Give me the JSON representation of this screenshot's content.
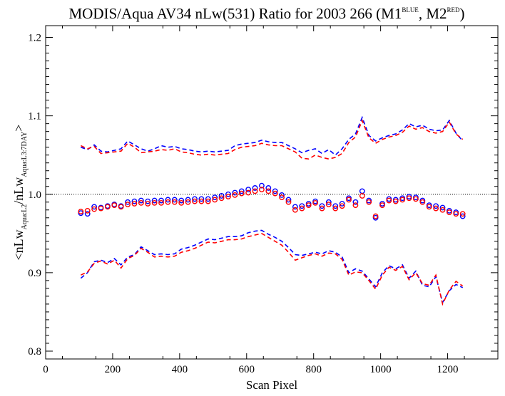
{
  "chart_data": {
    "type": "line",
    "title_main": "MODIS/Aqua AV34 nLw(531) Ratio for 2003 266 (M1",
    "title_sup1": "BLUE",
    "title_mid": ", M2",
    "title_sup2": "RED",
    "title_end": ")",
    "xlabel": "Scan Pixel",
    "ylabel": {
      "pre": "<nLw",
      "sub1": "Aqua:L2",
      "mid": "/nLw",
      "sub2": "Aqua:L3:7DAY",
      "post": ">"
    },
    "xlim": [
      0,
      1350
    ],
    "ylim": [
      0.79,
      1.215
    ],
    "xticks": [
      0,
      200,
      400,
      600,
      800,
      1000,
      1200
    ],
    "xtick_labels": [
      "0",
      "200",
      "400",
      "600",
      "800",
      "1000",
      "1200"
    ],
    "yticks": [
      0.8,
      0.9,
      1.0,
      1.1,
      1.2
    ],
    "ytick_labels": [
      "0.8",
      "0.9",
      "1.0",
      "1.1",
      "1.2"
    ],
    "reference_line": 1.0,
    "x": [
      105,
      125,
      145,
      165,
      185,
      205,
      225,
      245,
      265,
      285,
      305,
      325,
      345,
      365,
      385,
      405,
      425,
      445,
      465,
      485,
      505,
      525,
      545,
      565,
      585,
      605,
      625,
      645,
      665,
      685,
      705,
      725,
      745,
      765,
      785,
      805,
      825,
      845,
      865,
      885,
      905,
      925,
      945,
      965,
      985,
      1005,
      1025,
      1045,
      1065,
      1085,
      1105,
      1125,
      1145,
      1165,
      1185,
      1205,
      1225,
      1245
    ],
    "colors": {
      "M1": "#0000ff",
      "M2": "#ff0000",
      "reference": "#000000"
    },
    "series": [
      {
        "color_key": "M1",
        "style": "dashed",
        "role": "upper",
        "values": [
          1.06,
          1.057,
          1.063,
          1.055,
          1.054,
          1.056,
          1.058,
          1.068,
          1.063,
          1.058,
          1.055,
          1.058,
          1.062,
          1.06,
          1.061,
          1.058,
          1.057,
          1.055,
          1.054,
          1.055,
          1.054,
          1.055,
          1.056,
          1.062,
          1.064,
          1.065,
          1.066,
          1.069,
          1.067,
          1.066,
          1.066,
          1.062,
          1.058,
          1.053,
          1.056,
          1.058,
          1.052,
          1.057,
          1.05,
          1.058,
          1.07,
          1.077,
          1.098,
          1.075,
          1.068,
          1.072,
          1.075,
          1.077,
          1.082,
          1.09,
          1.086,
          1.088,
          1.083,
          1.081,
          1.082,
          1.094,
          1.078,
          1.068
        ]
      },
      {
        "color_key": "M2",
        "style": "dashed",
        "role": "upper",
        "values": [
          1.062,
          1.058,
          1.061,
          1.052,
          1.053,
          1.054,
          1.055,
          1.065,
          1.06,
          1.053,
          1.054,
          1.055,
          1.057,
          1.056,
          1.058,
          1.054,
          1.053,
          1.051,
          1.05,
          1.051,
          1.05,
          1.051,
          1.052,
          1.057,
          1.06,
          1.061,
          1.062,
          1.065,
          1.063,
          1.062,
          1.062,
          1.058,
          1.054,
          1.046,
          1.045,
          1.05,
          1.047,
          1.045,
          1.047,
          1.052,
          1.066,
          1.073,
          1.094,
          1.072,
          1.065,
          1.07,
          1.073,
          1.075,
          1.079,
          1.087,
          1.083,
          1.085,
          1.08,
          1.078,
          1.08,
          1.092,
          1.077,
          1.07
        ]
      },
      {
        "color_key": "M1",
        "style": "dots",
        "role": "mean",
        "values": [
          0.976,
          0.975,
          0.984,
          0.983,
          0.985,
          0.987,
          0.985,
          0.99,
          0.991,
          0.992,
          0.991,
          0.992,
          0.992,
          0.993,
          0.993,
          0.992,
          0.993,
          0.994,
          0.994,
          0.994,
          0.996,
          0.998,
          1.0,
          1.002,
          1.004,
          1.006,
          1.008,
          1.011,
          1.008,
          1.004,
          0.999,
          0.993,
          0.984,
          0.985,
          0.988,
          0.991,
          0.985,
          0.99,
          0.985,
          0.988,
          0.995,
          0.99,
          1.004,
          0.992,
          0.97,
          0.988,
          0.994,
          0.993,
          0.995,
          0.997,
          0.996,
          0.992,
          0.986,
          0.985,
          0.983,
          0.979,
          0.977,
          0.972
        ]
      },
      {
        "color_key": "M2",
        "style": "dots",
        "role": "mean",
        "values": [
          0.978,
          0.979,
          0.981,
          0.982,
          0.984,
          0.986,
          0.984,
          0.987,
          0.988,
          0.989,
          0.988,
          0.989,
          0.989,
          0.99,
          0.99,
          0.989,
          0.99,
          0.991,
          0.991,
          0.991,
          0.993,
          0.995,
          0.997,
          0.999,
          1.001,
          1.002,
          1.004,
          1.006,
          1.004,
          1.001,
          0.996,
          0.99,
          0.98,
          0.982,
          0.986,
          0.989,
          0.982,
          0.987,
          0.982,
          0.985,
          0.993,
          0.986,
          0.998,
          0.99,
          0.972,
          0.986,
          0.992,
          0.991,
          0.993,
          0.995,
          0.994,
          0.99,
          0.984,
          0.982,
          0.98,
          0.977,
          0.975,
          0.975
        ]
      },
      {
        "color_key": "M1",
        "style": "dashed",
        "role": "lower",
        "values": [
          0.893,
          0.9,
          0.914,
          0.916,
          0.913,
          0.918,
          0.91,
          0.92,
          0.923,
          0.933,
          0.928,
          0.923,
          0.924,
          0.923,
          0.924,
          0.93,
          0.932,
          0.935,
          0.939,
          0.943,
          0.942,
          0.944,
          0.946,
          0.946,
          0.947,
          0.951,
          0.953,
          0.954,
          0.949,
          0.945,
          0.94,
          0.932,
          0.923,
          0.922,
          0.924,
          0.926,
          0.924,
          0.928,
          0.926,
          0.92,
          0.9,
          0.905,
          0.902,
          0.892,
          0.882,
          0.9,
          0.909,
          0.905,
          0.91,
          0.893,
          0.902,
          0.884,
          0.882,
          0.895,
          0.862,
          0.877,
          0.885,
          0.881
        ]
      },
      {
        "color_key": "M2",
        "style": "dashed",
        "role": "lower",
        "values": [
          0.897,
          0.901,
          0.912,
          0.915,
          0.911,
          0.916,
          0.906,
          0.918,
          0.922,
          0.931,
          0.926,
          0.92,
          0.921,
          0.92,
          0.921,
          0.926,
          0.928,
          0.931,
          0.935,
          0.939,
          0.938,
          0.94,
          0.942,
          0.942,
          0.943,
          0.946,
          0.948,
          0.95,
          0.945,
          0.94,
          0.935,
          0.926,
          0.916,
          0.919,
          0.922,
          0.924,
          0.921,
          0.925,
          0.924,
          0.917,
          0.897,
          0.901,
          0.9,
          0.89,
          0.879,
          0.897,
          0.907,
          0.903,
          0.908,
          0.891,
          0.9,
          0.886,
          0.884,
          0.897,
          0.86,
          0.878,
          0.889,
          0.883
        ]
      }
    ]
  }
}
